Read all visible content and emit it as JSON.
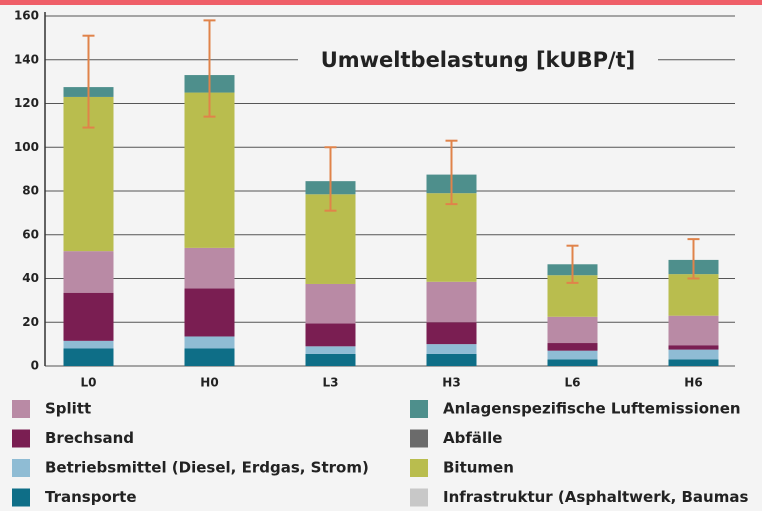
{
  "chart_data": {
    "type": "stacked-bar",
    "title": "Umweltbelastung [kUBP/t]",
    "categories": [
      "L0",
      "H0",
      "L3",
      "H3",
      "L6",
      "H6"
    ],
    "series": [
      {
        "name": "Transporte",
        "color": "#0e6e87",
        "values": [
          8,
          8,
          5.5,
          5.5,
          3,
          3
        ]
      },
      {
        "name": "Betriebsmittel (Diesel, Erdgas, Strom)",
        "color": "#8fbcd4",
        "values": [
          3.5,
          5.5,
          3.5,
          4.5,
          4,
          4.5
        ]
      },
      {
        "name": "Brechsand",
        "color": "#7a1e52",
        "values": [
          22,
          22,
          10.5,
          10,
          3.5,
          2
        ]
      },
      {
        "name": "Splitt",
        "color": "#b98aa5",
        "values": [
          19,
          18.5,
          18,
          18.5,
          12,
          13.5
        ]
      },
      {
        "name": "Abfälle",
        "color": "#6b6b6b",
        "values": [
          0,
          0,
          0,
          0,
          0,
          0
        ]
      },
      {
        "name": "Infrastruktur (Asphaltwerk, Baumas",
        "color": "#c8c8c8",
        "values": [
          0,
          0,
          0,
          0,
          0,
          0
        ]
      },
      {
        "name": "Bitumen",
        "color": "#b9bd4e",
        "values": [
          70.5,
          71,
          41,
          40.5,
          19,
          19
        ]
      },
      {
        "name": "Anlagenspezifische Luftemissionen",
        "color": "#4e8f8c",
        "values": [
          4.5,
          8,
          6,
          8.5,
          5,
          6.5
        ]
      }
    ],
    "error_bars": {
      "color": "#e0834a",
      "low": [
        109,
        114,
        71,
        74,
        38,
        40
      ],
      "high": [
        151,
        158,
        100,
        103,
        55,
        58
      ]
    },
    "ylim": [
      0,
      160
    ],
    "yticks": [
      0,
      20,
      40,
      60,
      80,
      100,
      120,
      140,
      160
    ],
    "grid": true
  }
}
